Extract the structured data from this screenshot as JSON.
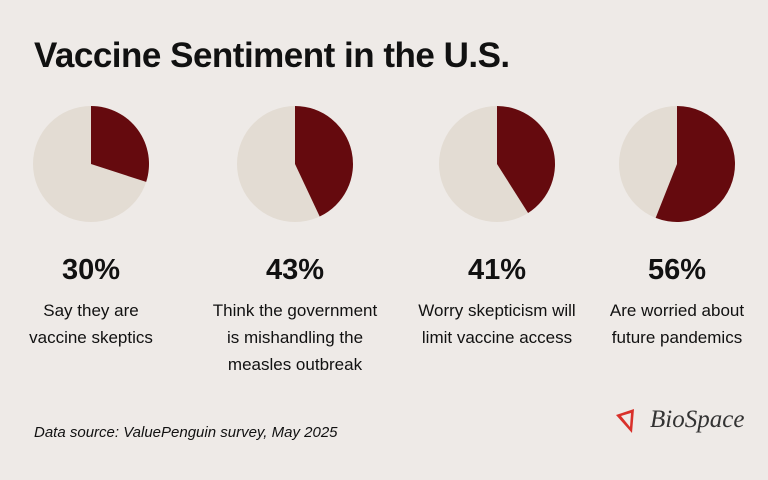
{
  "title": "Vaccine Sentiment in the U.S.",
  "colors": {
    "highlight": "#650a0e",
    "remainder": "#e3dcd3",
    "background": "#eeeae7"
  },
  "chart_data": [
    {
      "type": "pie",
      "value": 30,
      "label": "30%",
      "caption": [
        "Say they are",
        "vaccine skeptics"
      ]
    },
    {
      "type": "pie",
      "value": 43,
      "label": "43%",
      "caption": [
        "Think the government",
        "is mishandling the",
        "measles outbreak"
      ]
    },
    {
      "type": "pie",
      "value": 41,
      "label": "41%",
      "caption": [
        "Worry skepticism will",
        "limit vaccine access"
      ]
    },
    {
      "type": "pie",
      "value": 56,
      "label": "56%",
      "caption": [
        "Are worried about",
        "future pandemics"
      ]
    }
  ],
  "source": "Data source: ValuePenguin survey, May 2025",
  "logo": {
    "text": "BioSpace",
    "icon": "biospace-logo-icon"
  }
}
